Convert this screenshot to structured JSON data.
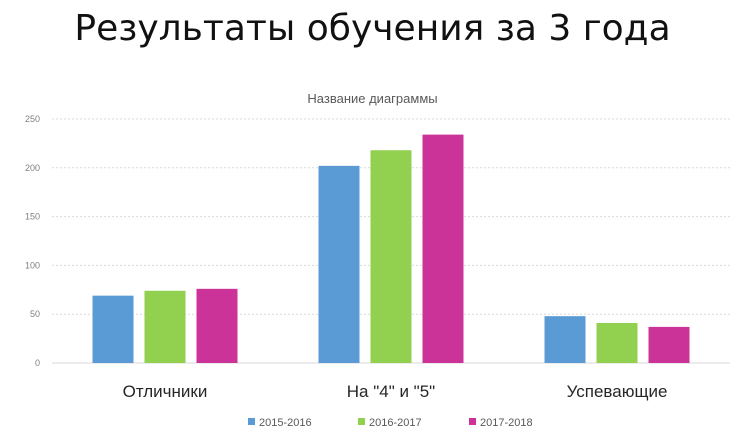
{
  "slide": {
    "title": "Результаты обучения за 3 года"
  },
  "chart_data": {
    "type": "bar",
    "title": "Название диаграммы",
    "categories": [
      "Отличники",
      "На \"4\" и \"5\"",
      "Успевающие"
    ],
    "series": [
      {
        "name": "2015-2016",
        "color": "#5b9bd5",
        "values": [
          69,
          202,
          48
        ]
      },
      {
        "name": "2016-2017",
        "color": "#92d050",
        "values": [
          74,
          218,
          41
        ]
      },
      {
        "name": "2017-2018",
        "color": "#cc3399",
        "values": [
          76,
          234,
          37
        ]
      }
    ],
    "ylim": [
      0,
      250
    ],
    "yticks": [
      0,
      50,
      100,
      150,
      200,
      250
    ],
    "grid": true,
    "legend_position": "bottom",
    "xlabel": "",
    "ylabel": ""
  }
}
